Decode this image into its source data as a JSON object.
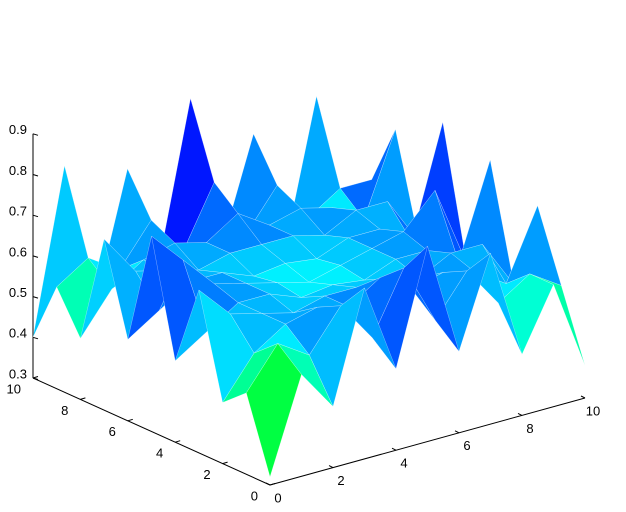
{
  "chart_data": {
    "type": "surface",
    "colormap": "hsv",
    "x": [
      0,
      1,
      2,
      3,
      4,
      5,
      6,
      7,
      8,
      9,
      10
    ],
    "y": [
      0,
      1,
      2,
      3,
      4,
      5,
      6,
      7,
      8,
      9,
      10
    ],
    "z": [
      [
        0.32,
        0.55,
        0.45,
        0.72,
        0.5,
        0.78,
        0.5,
        0.72,
        0.45,
        0.6,
        0.38
      ],
      [
        0.5,
        0.6,
        0.55,
        0.65,
        0.55,
        0.7,
        0.55,
        0.65,
        0.55,
        0.6,
        0.55
      ],
      [
        0.45,
        0.55,
        0.6,
        0.62,
        0.6,
        0.65,
        0.6,
        0.62,
        0.6,
        0.55,
        0.72
      ],
      [
        0.7,
        0.62,
        0.6,
        0.58,
        0.6,
        0.6,
        0.6,
        0.58,
        0.62,
        0.62,
        0.5
      ],
      [
        0.5,
        0.55,
        0.6,
        0.6,
        0.57,
        0.58,
        0.57,
        0.6,
        0.6,
        0.55,
        0.78
      ],
      [
        0.78,
        0.7,
        0.62,
        0.6,
        0.58,
        0.56,
        0.58,
        0.6,
        0.62,
        0.7,
        0.5
      ],
      [
        0.5,
        0.55,
        0.6,
        0.6,
        0.57,
        0.58,
        0.57,
        0.6,
        0.6,
        0.55,
        0.82
      ],
      [
        0.72,
        0.62,
        0.6,
        0.58,
        0.6,
        0.6,
        0.6,
        0.58,
        0.62,
        0.62,
        0.5
      ],
      [
        0.45,
        0.55,
        0.6,
        0.62,
        0.6,
        0.65,
        0.6,
        0.62,
        0.6,
        0.55,
        0.75
      ],
      [
        0.55,
        0.6,
        0.55,
        0.65,
        0.55,
        0.7,
        0.55,
        0.65,
        0.55,
        0.6,
        0.6
      ],
      [
        0.4,
        0.8,
        0.45,
        0.75,
        0.5,
        0.88,
        0.5,
        0.75,
        0.45,
        0.8,
        0.42
      ]
    ],
    "xlim": [
      0,
      10
    ],
    "ylim": [
      0,
      10
    ],
    "zlim": [
      0.3,
      0.9
    ],
    "xticks": [
      0,
      2,
      4,
      6,
      8,
      10
    ],
    "yticks": [
      0,
      2,
      4,
      6,
      8,
      10
    ],
    "zticks": [
      0.3,
      0.4,
      0.5,
      0.6,
      0.7,
      0.8,
      0.9
    ]
  }
}
